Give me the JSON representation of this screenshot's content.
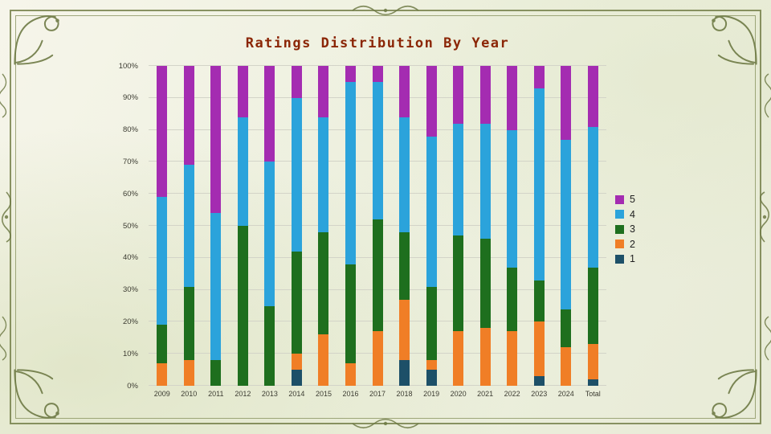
{
  "chart_data": {
    "type": "bar",
    "subtype": "100% stacked column",
    "title": "Ratings Distribution By Year",
    "title_color": "#8b2606",
    "grid": true,
    "legend_position": "right",
    "legend_order": [
      "5",
      "4",
      "3",
      "2",
      "1"
    ],
    "y_ticks": [
      "0%",
      "10%",
      "20%",
      "30%",
      "40%",
      "50%",
      "60%",
      "70%",
      "80%",
      "90%",
      "100%"
    ],
    "ylim": [
      0,
      100
    ],
    "categories": [
      "2009",
      "2010",
      "2011",
      "2012",
      "2013",
      "2014",
      "2015",
      "2016",
      "2017",
      "2018",
      "2019",
      "2020",
      "2021",
      "2022",
      "2023",
      "2024",
      "Total"
    ],
    "series": [
      {
        "name": "1",
        "color": "#1d5068",
        "values": [
          0,
          0,
          0,
          0,
          0,
          5,
          0,
          0,
          0,
          8,
          5,
          0,
          0,
          0,
          3,
          0,
          2
        ]
      },
      {
        "name": "2",
        "color": "#f07e26",
        "values": [
          7,
          8,
          0,
          0,
          0,
          5,
          16,
          7,
          17,
          19,
          3,
          17,
          18,
          17,
          17,
          12,
          11
        ]
      },
      {
        "name": "3",
        "color": "#1e6f1e",
        "values": [
          12,
          23,
          8,
          50,
          25,
          32,
          32,
          31,
          35,
          21,
          23,
          30,
          28,
          20,
          13,
          12,
          24
        ]
      },
      {
        "name": "4",
        "color": "#2ba3db",
        "values": [
          40,
          38,
          46,
          34,
          45,
          48,
          36,
          57,
          43,
          36,
          47,
          35,
          36,
          43,
          60,
          53,
          44
        ]
      },
      {
        "name": "5",
        "color": "#a42cb1",
        "values": [
          41,
          31,
          46,
          16,
          30,
          10,
          16,
          5,
          5,
          16,
          22,
          18,
          18,
          20,
          7,
          23,
          19
        ]
      }
    ]
  },
  "decor": {
    "frame_color": "#75804a"
  }
}
